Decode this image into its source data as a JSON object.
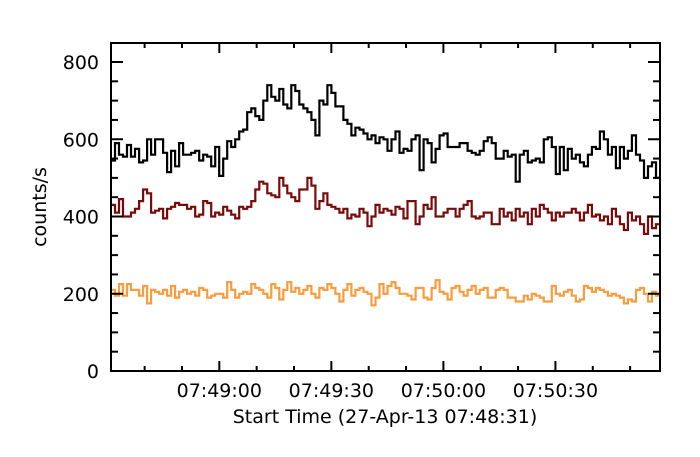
{
  "chart_data": {
    "type": "line",
    "style": "histogram-step",
    "title": "",
    "xlabel": "Start Time (27-Apr-13 07:48:31)",
    "ylabel": "counts/s",
    "ylim": [
      0,
      850
    ],
    "xlim_seconds": [
      0,
      147
    ],
    "x_start_time": "07:48:31",
    "bin_seconds": 1.07,
    "grid": false,
    "legend": "none",
    "y_ticks": [
      "0",
      "200",
      "400",
      "600",
      "800"
    ],
    "y_tick_values": [
      0,
      200,
      400,
      600,
      800
    ],
    "y_minor_step": 50,
    "x_ticks": [
      "07:49:00",
      "07:49:30",
      "07:50:00",
      "07:50:30"
    ],
    "x_tick_seconds": [
      29,
      59,
      89,
      119
    ],
    "x_minor_step_seconds": 10,
    "series": [
      {
        "name": "black",
        "color": "#000000",
        "values": [
          545,
          590,
          560,
          555,
          585,
          555,
          575,
          540,
          545,
          600,
          560,
          600,
          600,
          565,
          515,
          570,
          530,
          590,
          560,
          560,
          565,
          570,
          545,
          560,
          555,
          530,
          580,
          505,
          550,
          595,
          580,
          600,
          620,
          625,
          670,
          680,
          660,
          650,
          700,
          740,
          710,
          700,
          730,
          690,
          680,
          740,
          725,
          690,
          680,
          670,
          650,
          610,
          700,
          690,
          740,
          720,
          685,
          685,
          650,
          640,
          610,
          630,
          625,
          615,
          600,
          610,
          590,
          605,
          600,
          570,
          600,
          620,
          565,
          575,
          570,
          600,
          610,
          520,
          600,
          590,
          540,
          575,
          610,
          615,
          580,
          580,
          580,
          590,
          590,
          570,
          565,
          560,
          570,
          595,
          605,
          590,
          550,
          550,
          570,
          555,
          560,
          490,
          560,
          570,
          540,
          545,
          550,
          540,
          600,
          605,
          580,
          510,
          580,
          520,
          575,
          550,
          560,
          540,
          530,
          560,
          580,
          575,
          620,
          600,
          560,
          580,
          525,
          580,
          550,
          570,
          610,
          560,
          545,
          500,
          530,
          540,
          500
        ]
      },
      {
        "name": "dark-red",
        "color": "#7a0a0a",
        "values": [
          430,
          410,
          445,
          400,
          400,
          410,
          420,
          440,
          470,
          460,
          410,
          415,
          420,
          395,
          420,
          425,
          435,
          430,
          430,
          420,
          425,
          400,
          405,
          440,
          435,
          400,
          410,
          405,
          425,
          415,
          405,
          395,
          425,
          420,
          425,
          440,
          470,
          490,
          485,
          460,
          455,
          450,
          500,
          480,
          460,
          450,
          440,
          470,
          470,
          500,
          480,
          420,
          440,
          460,
          430,
          425,
          420,
          410,
          420,
          395,
          405,
          400,
          420,
          410,
          375,
          400,
          430,
          410,
          420,
          415,
          405,
          425,
          420,
          395,
          440,
          440,
          380,
          400,
          430,
          420,
          450,
          400,
          400,
          410,
          420,
          420,
          400,
          420,
          430,
          440,
          400,
          395,
          400,
          410,
          410,
          380,
          380,
          420,
          400,
          410,
          390,
          420,
          400,
          410,
          380,
          420,
          400,
          430,
          420,
          410,
          390,
          410,
          400,
          410,
          410,
          420,
          410,
          390,
          410,
          430,
          400,
          405,
          390,
          400,
          380,
          420,
          400,
          380,
          365,
          410,
          390,
          400,
          380,
          355,
          400,
          370,
          380
        ]
      },
      {
        "name": "orange",
        "color": "#f89c3c",
        "values": [
          210,
          195,
          225,
          195,
          225,
          210,
          210,
          195,
          220,
          175,
          210,
          205,
          200,
          210,
          195,
          220,
          190,
          205,
          210,
          200,
          205,
          195,
          215,
          210,
          190,
          195,
          200,
          200,
          190,
          230,
          210,
          190,
          200,
          205,
          200,
          225,
          215,
          210,
          200,
          190,
          225,
          215,
          185,
          210,
          230,
          205,
          215,
          200,
          210,
          220,
          200,
          190,
          215,
          210,
          225,
          215,
          200,
          180,
          210,
          225,
          195,
          210,
          215,
          205,
          200,
          170,
          190,
          225,
          200,
          220,
          230,
          215,
          200,
          200,
          195,
          185,
          215,
          215,
          190,
          185,
          215,
          235,
          205,
          200,
          185,
          215,
          220,
          205,
          195,
          210,
          220,
          200,
          210,
          215,
          190,
          190,
          210,
          215,
          210,
          190,
          190,
          180,
          180,
          195,
          185,
          200,
          195,
          190,
          180,
          180,
          220,
          200,
          195,
          205,
          210,
          195,
          180,
          185,
          220,
          215,
          205,
          215,
          210,
          205,
          195,
          200,
          195,
          190,
          175,
          185,
          180,
          210,
          215,
          200,
          180,
          205,
          195
        ]
      }
    ]
  }
}
